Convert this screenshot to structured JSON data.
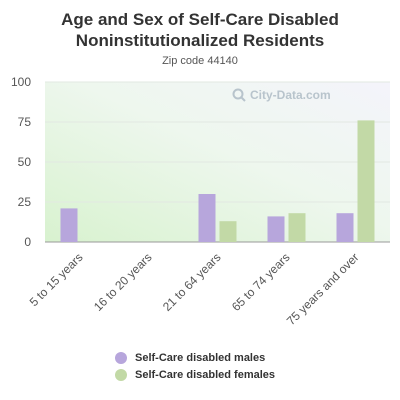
{
  "chart_data": {
    "type": "bar",
    "title_lines": [
      "Age and Sex of Self-Care Disabled",
      "Noninstitutionalized Residents"
    ],
    "subtitle": "Zip code 44140",
    "watermark": "City-Data.com",
    "categories": [
      "5 to 15 years",
      "16 to 20 years",
      "21 to 64 years",
      "65 to 74 years",
      "75 years and over"
    ],
    "series": [
      {
        "name": "Self-Care disabled males",
        "color": "#b7a6dc",
        "values": [
          21,
          0,
          30,
          16,
          18
        ]
      },
      {
        "name": "Self-Care disabled females",
        "color": "#c2d9a6",
        "values": [
          0,
          0,
          13,
          18,
          76
        ]
      }
    ],
    "ylim": [
      0,
      100
    ],
    "yticks": [
      0,
      25,
      50,
      75,
      100
    ],
    "grid": true,
    "legend_position": "bottom"
  }
}
